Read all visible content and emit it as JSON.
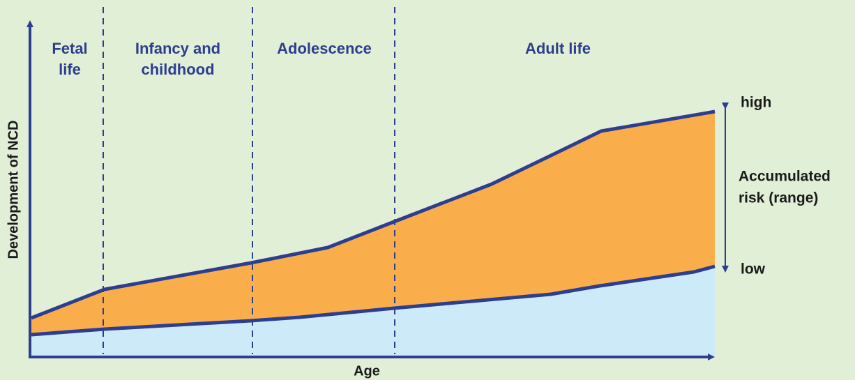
{
  "title_axis_y": "Development of NCD",
  "title_axis_x": "Age",
  "stages": [
    {
      "lines": [
        "Fetal",
        "life"
      ]
    },
    {
      "lines": [
        "Infancy and",
        "childhood"
      ]
    },
    {
      "lines": [
        "Adolescence"
      ]
    },
    {
      "lines": [
        "Adult life"
      ]
    }
  ],
  "range": {
    "high": "high",
    "label_lines": [
      "Accumulated",
      "risk (range)"
    ],
    "low": "low"
  }
}
